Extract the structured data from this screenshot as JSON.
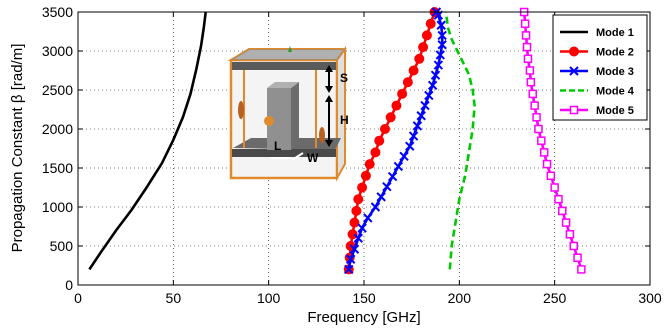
{
  "chart_data": {
    "type": "line",
    "title": "",
    "xlabel": "Frequency [GHz]",
    "ylabel": "Propagation Constant β [rad/m]",
    "xlim": [
      0,
      300
    ],
    "ylim": [
      0,
      3500
    ],
    "xticks": [
      0,
      50,
      100,
      150,
      200,
      250,
      300
    ],
    "yticks": [
      0,
      500,
      1000,
      1500,
      2000,
      2500,
      3000,
      3500
    ],
    "grid": true,
    "legend_position": "top-right",
    "series": [
      {
        "name": "Mode 1",
        "color": "#000000",
        "dash": "solid",
        "marker": "none",
        "points": [
          [
            6,
            200
          ],
          [
            12,
            420
          ],
          [
            20,
            700
          ],
          [
            28,
            960
          ],
          [
            36,
            1250
          ],
          [
            44,
            1560
          ],
          [
            50,
            1860
          ],
          [
            55,
            2150
          ],
          [
            59,
            2450
          ],
          [
            62,
            2760
          ],
          [
            64.5,
            3060
          ],
          [
            66,
            3300
          ],
          [
            67,
            3500
          ]
        ]
      },
      {
        "name": "Mode 2",
        "color": "#ff0000",
        "dash": "solid",
        "marker": "circle",
        "points": [
          [
            142,
            200
          ],
          [
            142.5,
            350
          ],
          [
            143,
            500
          ],
          [
            144,
            650
          ],
          [
            145,
            800
          ],
          [
            146,
            950
          ],
          [
            147,
            1100
          ],
          [
            149,
            1250
          ],
          [
            151,
            1400
          ],
          [
            153,
            1550
          ],
          [
            156,
            1700
          ],
          [
            158,
            1850
          ],
          [
            161,
            2000
          ],
          [
            164,
            2150
          ],
          [
            167,
            2300
          ],
          [
            170,
            2450
          ],
          [
            173,
            2600
          ],
          [
            176,
            2750
          ],
          [
            179,
            2900
          ],
          [
            181,
            3050
          ],
          [
            183,
            3200
          ],
          [
            185,
            3350
          ],
          [
            187,
            3500
          ]
        ]
      },
      {
        "name": "Mode 3",
        "color": "#0000ff",
        "dash": "solid",
        "marker": "x",
        "points": [
          [
            142,
            200
          ],
          [
            143,
            330
          ],
          [
            145,
            460
          ],
          [
            147,
            600
          ],
          [
            149,
            730
          ],
          [
            152,
            860
          ],
          [
            156,
            1000
          ],
          [
            159,
            1130
          ],
          [
            162,
            1260
          ],
          [
            165,
            1390
          ],
          [
            168,
            1520
          ],
          [
            171,
            1650
          ],
          [
            174,
            1780
          ],
          [
            176,
            1910
          ],
          [
            178,
            2040
          ],
          [
            180,
            2170
          ],
          [
            182,
            2300
          ],
          [
            184,
            2430
          ],
          [
            186,
            2560
          ],
          [
            187.5,
            2690
          ],
          [
            189,
            2820
          ],
          [
            190,
            2950
          ],
          [
            191,
            3080
          ],
          [
            191,
            3200
          ],
          [
            190.5,
            3330
          ],
          [
            189,
            3460
          ],
          [
            188,
            3500
          ]
        ]
      },
      {
        "name": "Mode 4",
        "color": "#00c800",
        "dash": "dashed",
        "marker": "none",
        "points": [
          [
            195,
            200
          ],
          [
            196,
            500
          ],
          [
            198,
            800
          ],
          [
            200,
            1100
          ],
          [
            203,
            1400
          ],
          [
            205,
            1700
          ],
          [
            207,
            2000
          ],
          [
            208,
            2300
          ],
          [
            207,
            2500
          ],
          [
            205,
            2700
          ],
          [
            202,
            2850
          ],
          [
            199,
            3000
          ],
          [
            196,
            3150
          ],
          [
            194,
            3300
          ],
          [
            193,
            3500
          ]
        ]
      },
      {
        "name": "Mode 5",
        "color": "#ff00ff",
        "dash": "solid",
        "marker": "square",
        "points": [
          [
            234,
            3500
          ],
          [
            234.5,
            3350
          ],
          [
            235,
            3200
          ],
          [
            235.5,
            3050
          ],
          [
            236,
            2900
          ],
          [
            237,
            2750
          ],
          [
            237.5,
            2600
          ],
          [
            238.5,
            2450
          ],
          [
            239.5,
            2300
          ],
          [
            240.5,
            2150
          ],
          [
            241.5,
            2000
          ],
          [
            243,
            1850
          ],
          [
            244.5,
            1700
          ],
          [
            246,
            1550
          ],
          [
            248,
            1400
          ],
          [
            250,
            1250
          ],
          [
            252,
            1100
          ],
          [
            254,
            950
          ],
          [
            256,
            800
          ],
          [
            258,
            650
          ],
          [
            260,
            500
          ],
          [
            262,
            350
          ],
          [
            264,
            200
          ]
        ]
      }
    ]
  },
  "inset": {
    "labels": {
      "s": "S",
      "h": "H",
      "l": "L",
      "w": "W"
    }
  }
}
